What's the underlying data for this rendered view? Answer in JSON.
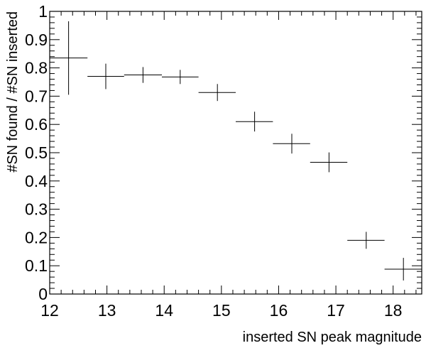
{
  "chart_data": {
    "type": "scatter",
    "xlabel": "inserted SN peak magnitude",
    "ylabel": "#SN found / #SN inserted",
    "xlim": [
      12,
      18.5
    ],
    "ylim": [
      0,
      1
    ],
    "x_ticks": [
      "12",
      "13",
      "14",
      "15",
      "16",
      "17",
      "18"
    ],
    "y_ticks": [
      "0",
      "0.1",
      "0.2",
      "0.3",
      "0.4",
      "0.5",
      "0.6",
      "0.7",
      "0.8",
      "0.9",
      "1"
    ],
    "grid": false,
    "points": [
      {
        "x": 12.33,
        "x_lo": 12.0,
        "x_hi": 12.66,
        "y": 0.835,
        "y_err": 0.13
      },
      {
        "x": 12.98,
        "x_lo": 12.66,
        "x_hi": 13.3,
        "y": 0.77,
        "y_err": 0.045
      },
      {
        "x": 13.63,
        "x_lo": 13.3,
        "x_hi": 13.96,
        "y": 0.775,
        "y_err": 0.028
      },
      {
        "x": 14.28,
        "x_lo": 13.96,
        "x_hi": 14.6,
        "y": 0.768,
        "y_err": 0.025
      },
      {
        "x": 14.93,
        "x_lo": 14.6,
        "x_hi": 15.25,
        "y": 0.713,
        "y_err": 0.03
      },
      {
        "x": 15.58,
        "x_lo": 15.25,
        "x_hi": 15.9,
        "y": 0.61,
        "y_err": 0.035
      },
      {
        "x": 16.23,
        "x_lo": 15.9,
        "x_hi": 16.55,
        "y": 0.532,
        "y_err": 0.035
      },
      {
        "x": 16.88,
        "x_lo": 16.55,
        "x_hi": 17.2,
        "y": 0.466,
        "y_err": 0.035
      },
      {
        "x": 17.53,
        "x_lo": 17.2,
        "x_hi": 17.85,
        "y": 0.19,
        "y_err": 0.03
      },
      {
        "x": 18.18,
        "x_lo": 17.85,
        "x_hi": 18.5,
        "y": 0.088,
        "y_err": 0.04
      }
    ]
  }
}
